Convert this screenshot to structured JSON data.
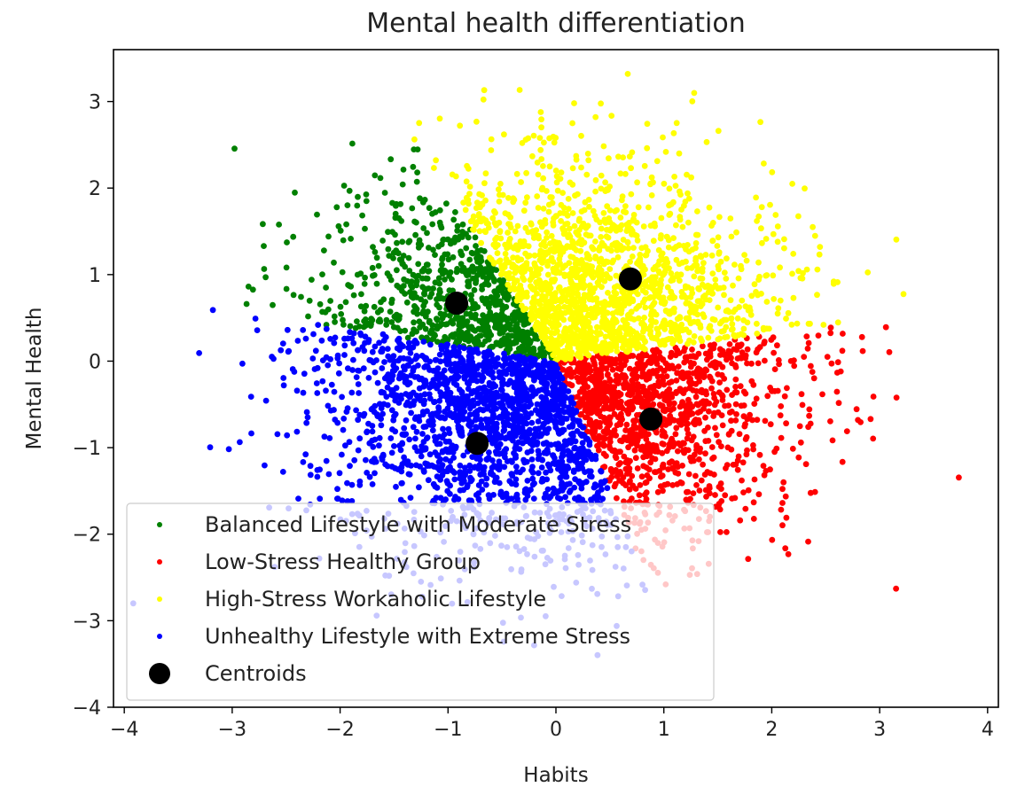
{
  "chart_data": {
    "type": "scatter",
    "title": "Mental health differentiation",
    "xlabel": "Habits",
    "ylabel": "Mental Health",
    "xlim": [
      -4.1,
      4.1
    ],
    "ylim": [
      -4.0,
      3.6
    ],
    "x_ticks": [
      -4,
      -3,
      -2,
      -1,
      0,
      1,
      2,
      3,
      4
    ],
    "y_ticks": [
      -4,
      -3,
      -2,
      -1,
      0,
      1,
      2,
      3
    ],
    "x_tick_labels": [
      "−4",
      "−3",
      "−2",
      "−1",
      "0",
      "1",
      "2",
      "3",
      "4"
    ],
    "y_tick_labels": [
      "−4",
      "−3",
      "−2",
      "−1",
      "0",
      "1",
      "2",
      "3"
    ],
    "grid": false,
    "legend_position": "lower-left",
    "series": [
      {
        "name": "Balanced Lifestyle with Moderate Stress",
        "color": "#008000",
        "sector": [
          2.05,
          2.95
        ]
      },
      {
        "name": "Low-Stress Healthy Group",
        "color": "#ff0000",
        "sector": [
          5.04,
          6.44
        ]
      },
      {
        "name": "High-Stress Workaholic Lifestyle",
        "color": "#ffff00",
        "sector": [
          0.12,
          2.05
        ]
      },
      {
        "name": "Unhealthy Lifestyle with Extreme Stress",
        "color": "#0000ff",
        "sector": [
          2.95,
          5.04
        ]
      }
    ],
    "centroids": {
      "name": "Centroids",
      "color": "#000000",
      "points": [
        {
          "x": -0.92,
          "y": 0.67
        },
        {
          "x": 0.69,
          "y": 0.95
        },
        {
          "x": 0.88,
          "y": -0.67
        },
        {
          "x": -0.73,
          "y": -0.95
        }
      ]
    },
    "point_cloud": {
      "count": 5500,
      "spread_x": 1.0,
      "spread_y": 1.0
    }
  }
}
